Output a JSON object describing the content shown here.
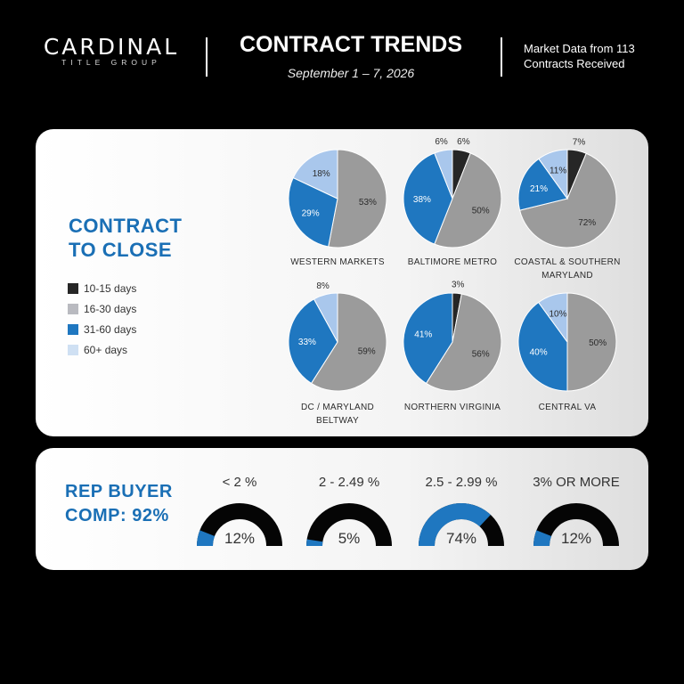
{
  "header": {
    "logo_main": "CARDINAL",
    "logo_sub": "TITLE GROUP",
    "title": "CONTRACT TRENDS",
    "subtitle": "September 1 – 7, 2026",
    "market_note": "Market Data from 113 Contracts Received"
  },
  "colors": {
    "c10_15": "#262626",
    "c16_30": "#9b9b9b",
    "c31_60": "#1f77c0",
    "c60_plus": "#a9c7ec",
    "gauge_dark": "#050505",
    "gauge_fill": "#1f77c0",
    "accent": "#1a6fb5"
  },
  "contract_section": {
    "heading_line1": "CONTRACT",
    "heading_line2": "TO CLOSE"
  },
  "legend": [
    {
      "label": "10-15 days",
      "color": "#262626"
    },
    {
      "label": "16-30 days",
      "color": "#9b9b9b"
    },
    {
      "label": "31-60 days",
      "color": "#1f77c0"
    },
    {
      "label": "60+ days",
      "color": "#a9c7ec"
    }
  ],
  "comp_section": {
    "heading_line1": "REP BUYER",
    "heading_line2": "COMP: 92%"
  },
  "chart_data": [
    {
      "type": "pie",
      "title": "CONTRACT TO CLOSE",
      "categories": [
        "10-15 days",
        "16-30 days",
        "31-60 days",
        "60+ days"
      ],
      "series": [
        {
          "name": "WESTERN MARKETS",
          "values": [
            0,
            53,
            29,
            18
          ],
          "labels": [
            "",
            "53%",
            "29%",
            "18%"
          ]
        },
        {
          "name": "BALTIMORE METRO",
          "values": [
            6,
            50,
            38,
            6
          ],
          "labels": [
            "6%",
            "50%",
            "38%",
            "6%"
          ]
        },
        {
          "name": "COASTAL & SOUTHERN MARYLAND",
          "values": [
            7,
            72,
            21,
            11
          ],
          "labels": [
            "7%",
            "72%",
            "21%",
            "11%"
          ]
        },
        {
          "name": "DC / MARYLAND BELTWAY",
          "values": [
            0,
            59,
            33,
            8
          ],
          "labels": [
            "",
            "59%",
            "33%",
            "8%"
          ]
        },
        {
          "name": "NORTHERN VIRGINIA",
          "values": [
            3,
            56,
            41,
            0
          ],
          "labels": [
            "3%",
            "56%",
            "41%",
            ""
          ]
        },
        {
          "name": "CENTRAL VA",
          "values": [
            0,
            50,
            40,
            10
          ],
          "labels": [
            "",
            "50%",
            "40%",
            "10%"
          ]
        }
      ]
    },
    {
      "type": "gauge",
      "title": "REP BUYER COMP: 92%",
      "categories": [
        "< 2 %",
        "2 - 2.49 %",
        "2.5 - 2.99 %",
        "3% OR MORE"
      ],
      "values": [
        12,
        5,
        74,
        12
      ],
      "labels": [
        "12%",
        "5%",
        "74%",
        "12%"
      ]
    }
  ]
}
